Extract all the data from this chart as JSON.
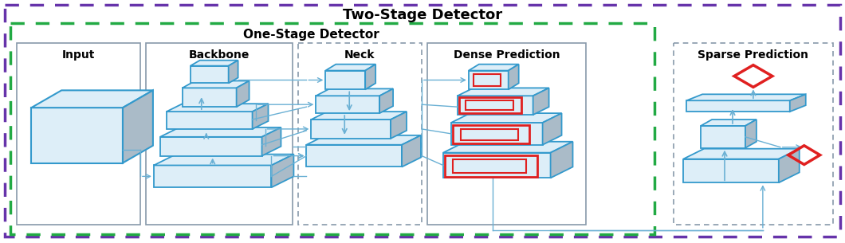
{
  "title_two_stage": "Two-Stage Detector",
  "title_one_stage": "One-Stage Detector",
  "section_labels": [
    "Input",
    "Backbone",
    "Neck",
    "Dense Prediction",
    "Sparse Prediction"
  ],
  "bg_color": "#ffffff",
  "box_face_color": "#ddeef8",
  "box_edge_color": "#3399cc",
  "box_side_color": "#aabbc8",
  "red_color": "#e02020",
  "arrow_color": "#6ab0d4",
  "two_stage_border_color": "#6633aa",
  "one_stage_border_color": "#22aa44",
  "section_border_color": "#99aacc",
  "section_border_color2": "#99aacc"
}
